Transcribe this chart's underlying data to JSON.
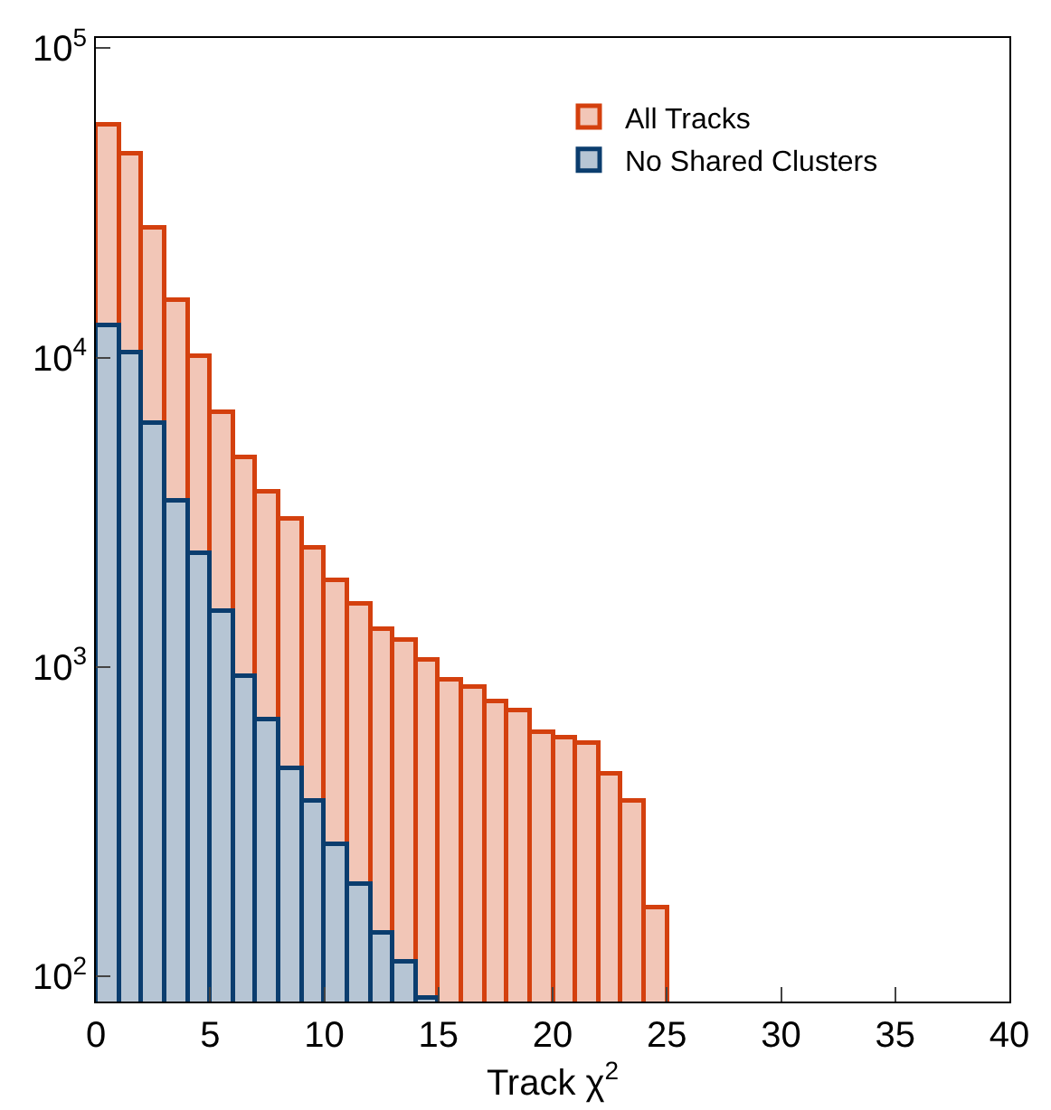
{
  "chart_data": {
    "type": "histogram",
    "xlabel": "Track χ$^{2}$",
    "bins": [
      0,
      1,
      2,
      3,
      4,
      5,
      6,
      7,
      8,
      9,
      10,
      11,
      12,
      13,
      14,
      15,
      16,
      17,
      18,
      19,
      20,
      21,
      22,
      23,
      24,
      25,
      26,
      27,
      28,
      29,
      30,
      31,
      32,
      33,
      34,
      35,
      36,
      37,
      38,
      39,
      40
    ],
    "series": [
      {
        "name": "All Tracks",
        "color": "#d4400e",
        "values": [
          57000,
          45400,
          26200,
          15300,
          10100,
          6650,
          4740,
          3710,
          3000,
          2430,
          1920,
          1600,
          1320,
          1220,
          1050,
          910,
          865,
          770,
          720,
          615,
          590,
          567,
          454,
          372,
          166,
          null,
          null,
          null,
          null,
          null,
          null,
          null,
          null,
          null,
          null,
          null,
          null,
          null,
          null,
          null
        ]
      },
      {
        "name": "No Shared Clusters",
        "color": "#0b3d6e",
        "values": [
          12700,
          10400,
          6170,
          3440,
          2320,
          1520,
          936,
          681,
          468,
          372,
          268,
          199,
          138,
          111,
          85,
          null,
          null,
          null,
          null,
          null,
          null,
          null,
          null,
          null,
          null,
          null,
          null,
          null,
          null,
          null,
          null,
          null,
          null,
          null,
          null,
          null,
          null,
          null,
          null,
          null
        ]
      }
    ],
    "log": "y",
    "xlim": [
      0,
      40
    ],
    "xticks": [
      0,
      5,
      10,
      15,
      20,
      25,
      30,
      35,
      40
    ],
    "ylim": [
      83,
      108000
    ],
    "yticks": [
      {
        "value": 100,
        "label": "10$^{2}$"
      },
      {
        "value": 1000,
        "label": "10$^{3}$"
      },
      {
        "value": 10000,
        "label": "10$^{4}$"
      },
      {
        "value": 100000,
        "label": "10$^{5}$"
      }
    ],
    "legend": "top right",
    "grid": false
  }
}
